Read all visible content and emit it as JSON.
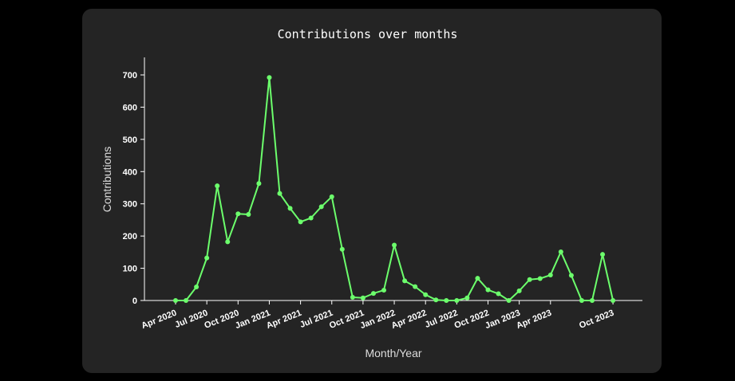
{
  "chart_data": {
    "type": "line",
    "title": "Contributions over months",
    "xlabel": "Month/Year",
    "ylabel": "Contributions",
    "ylim": [
      0,
      750
    ],
    "yticks": [
      0,
      100,
      200,
      300,
      400,
      500,
      600,
      700
    ],
    "xticks": [
      "Apr 2020",
      "Jul 2020",
      "Oct 2020",
      "Jan 2021",
      "Apr 2021",
      "Jul 2021",
      "Oct 2021",
      "Jan 2022",
      "Apr 2022",
      "Jul 2022",
      "Oct 2022",
      "Jan 2023",
      "Apr 2023",
      "Oct 2023"
    ],
    "x": [
      "2020-04",
      "2020-05",
      "2020-06",
      "2020-07",
      "2020-08",
      "2020-09",
      "2020-10",
      "2020-11",
      "2020-12",
      "2021-01",
      "2021-02",
      "2021-03",
      "2021-04",
      "2021-05",
      "2021-06",
      "2021-07",
      "2021-08",
      "2021-09",
      "2021-10",
      "2021-11",
      "2021-12",
      "2022-01",
      "2022-02",
      "2022-03",
      "2022-04",
      "2022-05",
      "2022-06",
      "2022-07",
      "2022-08",
      "2022-09",
      "2022-10",
      "2022-11",
      "2022-12",
      "2023-01",
      "2023-02",
      "2023-03",
      "2023-04",
      "2023-05",
      "2023-06",
      "2023-07",
      "2023-08",
      "2023-09",
      "2023-10"
    ],
    "values": [
      0,
      0,
      42,
      132,
      356,
      182,
      269,
      267,
      363,
      692,
      332,
      286,
      244,
      256,
      291,
      322,
      159,
      10,
      8,
      22,
      32,
      172,
      61,
      43,
      18,
      2,
      0,
      0,
      8,
      69,
      33,
      21,
      0,
      30,
      65,
      68,
      79,
      151,
      78,
      0,
      0,
      143,
      0
    ],
    "color": "#6cff6c",
    "grid": false
  }
}
